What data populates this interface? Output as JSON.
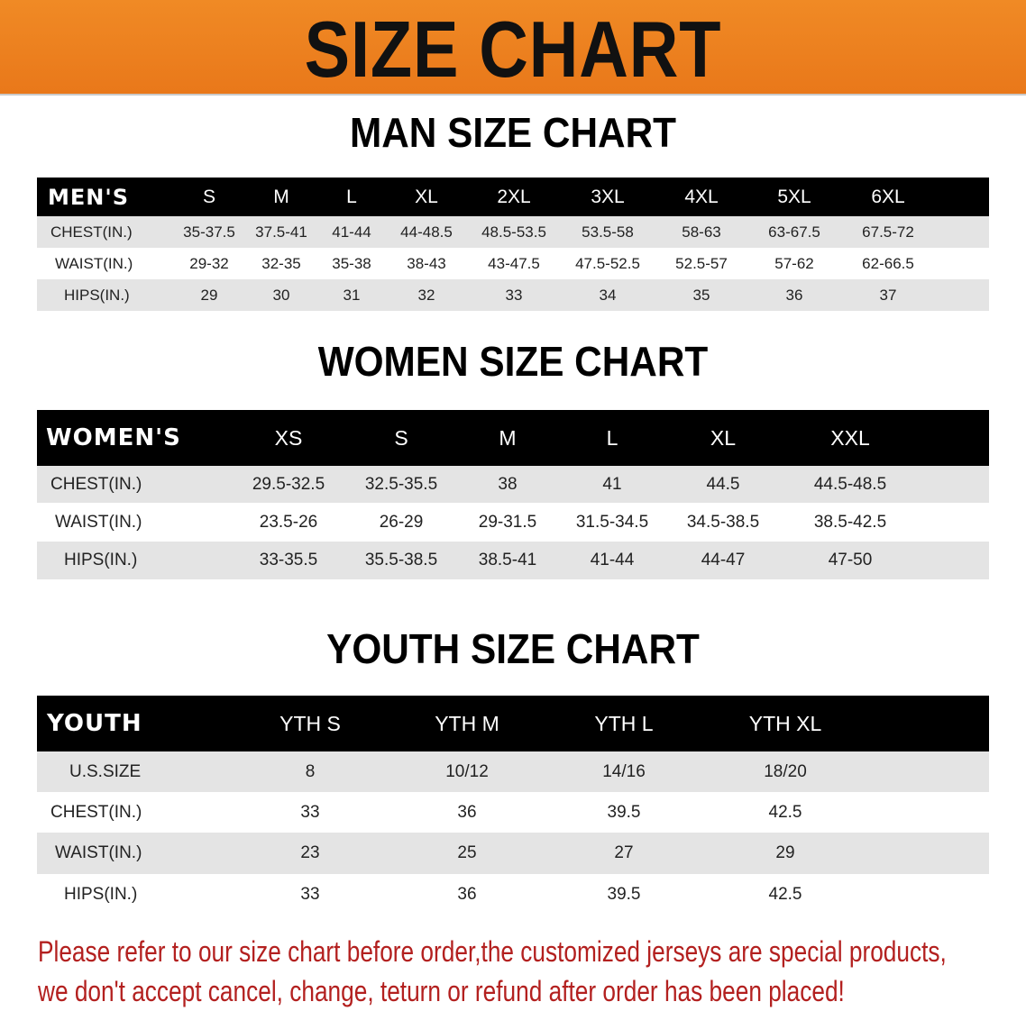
{
  "banner_title": "SIZE CHART",
  "men": {
    "title": "MAN SIZE CHART",
    "header": [
      "MEN'S",
      "S",
      "M",
      "L",
      "XL",
      "2XL",
      "3XL",
      "4XL",
      "5XL",
      "6XL"
    ],
    "rows": [
      [
        "CHEST(IN.)",
        "35-37.5",
        "37.5-41",
        "41-44",
        "44-48.5",
        "48.5-53.5",
        "53.5-58",
        "58-63",
        "63-67.5",
        "67.5-72"
      ],
      [
        "WAIST(IN.)",
        "29-32",
        "32-35",
        "35-38",
        "38-43",
        "43-47.5",
        "47.5-52.5",
        "52.5-57",
        "57-62",
        "62-66.5"
      ],
      [
        "HIPS(IN.)",
        "29",
        "30",
        "31",
        "32",
        "33",
        "34",
        "35",
        "36",
        "37"
      ]
    ]
  },
  "women": {
    "title": "WOMEN SIZE CHART",
    "header": [
      "WOMEN'S",
      "XS",
      "S",
      "M",
      "L",
      "XL",
      "XXL"
    ],
    "rows": [
      [
        "CHEST(IN.)",
        "29.5-32.5",
        "32.5-35.5",
        "38",
        "41",
        "44.5",
        "44.5-48.5"
      ],
      [
        "WAIST(IN.)",
        "23.5-26",
        "26-29",
        "29-31.5",
        "31.5-34.5",
        "34.5-38.5",
        "38.5-42.5"
      ],
      [
        "HIPS(IN.)",
        "33-35.5",
        "35.5-38.5",
        "38.5-41",
        "41-44",
        "44-47",
        "47-50"
      ]
    ]
  },
  "youth": {
    "title": "YOUTH SIZE CHART",
    "header": [
      "YOUTH",
      "YTH S",
      "YTH M",
      "YTH L",
      "YTH XL"
    ],
    "rows": [
      [
        "U.S.SIZE",
        "8",
        "10/12",
        "14/16",
        "18/20"
      ],
      [
        "CHEST(IN.)",
        "33",
        "36",
        "39.5",
        "42.5"
      ],
      [
        "WAIST(IN.)",
        "23",
        "25",
        "27",
        "29"
      ],
      [
        "HIPS(IN.)",
        "33",
        "36",
        "39.5",
        "42.5"
      ]
    ]
  },
  "note": {
    "line1": "Please refer to our size chart before order,the customized jerseys are special products,",
    "line2": "we don't accept cancel, change, teturn or refund after order has been placed!"
  },
  "colors": {
    "banner": "#ee7d1c",
    "header_row": "#000000",
    "stripe": "#e4e4e4",
    "note": "#b3201f"
  }
}
